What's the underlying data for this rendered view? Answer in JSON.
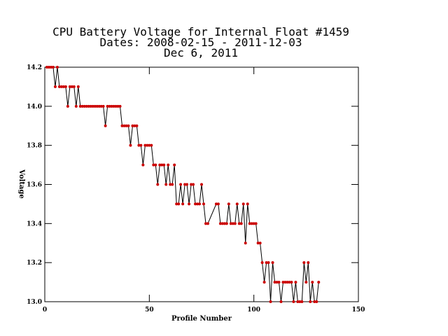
{
  "chart_data": {
    "type": "line",
    "title": [
      "CPU Battery Voltage for Internal Float #1459",
      "Dates:  2008-02-15 -  2011-12-03",
      "Dec  6, 2011"
    ],
    "xlabel": "Profile Number",
    "ylabel": "Voltage",
    "xlim": [
      0,
      150
    ],
    "xticks": [
      0,
      50,
      100,
      150
    ],
    "ylim": [
      13,
      14.2
    ],
    "yticks": [
      {
        "value": 13,
        "label": "13.0"
      },
      13.2,
      13.4,
      13.6,
      13.8,
      {
        "value": 14,
        "label": "14.0"
      },
      14.2
    ],
    "series": [
      {
        "color": "#cc0000",
        "line_color": "#000000",
        "x": [
          1,
          2,
          3,
          4,
          5,
          6,
          7,
          8,
          9,
          10,
          11,
          12,
          13,
          14,
          15,
          16,
          17,
          18,
          19,
          20,
          21,
          22,
          23,
          24,
          25,
          26,
          27,
          28,
          29,
          30,
          31,
          32,
          33,
          34,
          35,
          36,
          37,
          38,
          39,
          40,
          41,
          42,
          43,
          44,
          45,
          46,
          47,
          48,
          49,
          50,
          51,
          52,
          53,
          54,
          55,
          56,
          57,
          58,
          59,
          60,
          61,
          62,
          63,
          64,
          65,
          66,
          67,
          68,
          69,
          70,
          71,
          72,
          73,
          74,
          75,
          76,
          77,
          78,
          82,
          83,
          84,
          85,
          86,
          87,
          88,
          89,
          90,
          91,
          92,
          93,
          94,
          95,
          96,
          97,
          98,
          99,
          100,
          101,
          102,
          103,
          104,
          105,
          106,
          107,
          108,
          109,
          110,
          111,
          112,
          113,
          114,
          115,
          116,
          117,
          118,
          119,
          120,
          121,
          122,
          123,
          124,
          125,
          126,
          127,
          128,
          129,
          130,
          131
        ],
        "values": [
          14.2,
          14.2,
          14.2,
          14.2,
          14.1,
          14.2,
          14.1,
          14.1,
          14.1,
          14.1,
          14.0,
          14.1,
          14.1,
          14.1,
          14.0,
          14.1,
          14.0,
          14.0,
          14.0,
          14.0,
          14.0,
          14.0,
          14.0,
          14.0,
          14.0,
          14.0,
          14.0,
          14.0,
          13.9,
          14.0,
          14.0,
          14.0,
          14.0,
          14.0,
          14.0,
          14.0,
          13.9,
          13.9,
          13.9,
          13.9,
          13.8,
          13.9,
          13.9,
          13.9,
          13.8,
          13.8,
          13.7,
          13.8,
          13.8,
          13.8,
          13.8,
          13.7,
          13.7,
          13.6,
          13.7,
          13.7,
          13.7,
          13.6,
          13.7,
          13.6,
          13.6,
          13.7,
          13.5,
          13.5,
          13.6,
          13.5,
          13.6,
          13.6,
          13.5,
          13.6,
          13.6,
          13.5,
          13.5,
          13.5,
          13.6,
          13.5,
          13.4,
          13.4,
          13.5,
          13.5,
          13.4,
          13.4,
          13.4,
          13.4,
          13.5,
          13.4,
          13.4,
          13.4,
          13.5,
          13.4,
          13.4,
          13.5,
          13.3,
          13.5,
          13.4,
          13.4,
          13.4,
          13.4,
          13.3,
          13.3,
          13.2,
          13.1,
          13.2,
          13.2,
          13.0,
          13.2,
          13.1,
          13.1,
          13.1,
          13.0,
          13.1,
          13.1,
          13.1,
          13.1,
          13.1,
          13.0,
          13.1,
          13.0,
          13.0,
          13.0,
          13.2,
          13.1,
          13.2,
          13.0,
          13.1,
          13.0,
          13.0,
          13.1
        ]
      }
    ]
  }
}
